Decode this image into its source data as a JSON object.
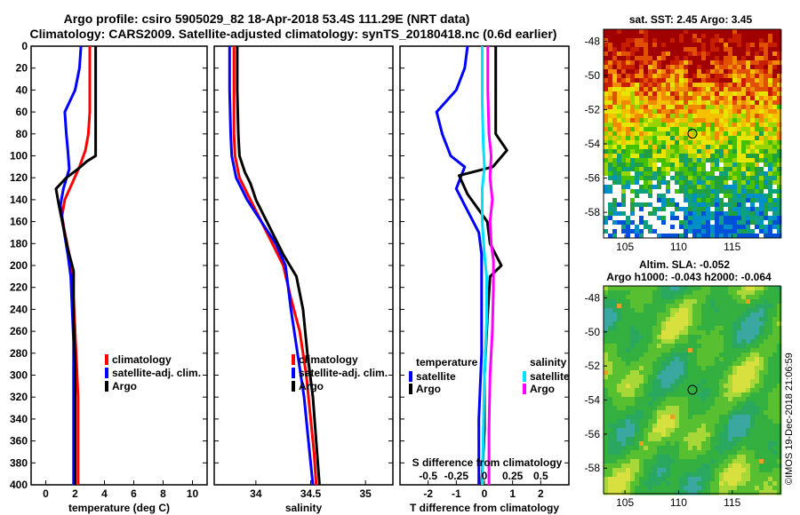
{
  "header": {
    "line1": "Argo profile: csiro 5905029_82 18-Apr-2018 53.4S 111.29E (NRT data)",
    "line2": "Climatology: CARS2009. Satellite-adjusted climatology: synTS_20180418.nc (0.6d earlier)"
  },
  "colors": {
    "climatology": "#ff0000",
    "satellite": "#0000ff",
    "argo": "#000000",
    "sat_salinity": "#00e0ff",
    "clim_salinity": "#ff00ff"
  },
  "depth_axis": {
    "ticks": [
      0,
      20,
      40,
      60,
      80,
      100,
      120,
      140,
      160,
      180,
      200,
      220,
      240,
      260,
      280,
      300,
      320,
      340,
      360,
      380,
      400
    ],
    "range": [
      0,
      400
    ]
  },
  "chart_data": [
    {
      "type": "line",
      "name": "temperature",
      "xlabel": "temperature (deg C)",
      "xlim": [
        -1,
        11
      ],
      "xticks": [
        0,
        2,
        4,
        6,
        8,
        10
      ],
      "ylim": [
        400,
        0
      ],
      "legend": [
        "climatology",
        "satellite-adj. clim.",
        "Argo"
      ],
      "series": [
        {
          "name": "climatology",
          "color": "#ff0000",
          "points": [
            [
              3.0,
              0
            ],
            [
              3.0,
              20
            ],
            [
              3.0,
              40
            ],
            [
              3.0,
              60
            ],
            [
              2.9,
              80
            ],
            [
              2.7,
              95
            ],
            [
              2.3,
              110
            ],
            [
              1.8,
              125
            ],
            [
              1.3,
              140
            ],
            [
              1.1,
              155
            ],
            [
              1.3,
              170
            ],
            [
              1.6,
              190
            ],
            [
              1.8,
              210
            ],
            [
              1.9,
              230
            ],
            [
              2.0,
              260
            ],
            [
              2.1,
              290
            ],
            [
              2.2,
              320
            ],
            [
              2.2,
              350
            ],
            [
              2.2,
              380
            ],
            [
              2.2,
              400
            ]
          ]
        },
        {
          "name": "satellite-adj. clim.",
          "color": "#0000ff",
          "points": [
            [
              2.4,
              0
            ],
            [
              2.3,
              20
            ],
            [
              2.0,
              40
            ],
            [
              1.3,
              60
            ],
            [
              1.4,
              80
            ],
            [
              1.5,
              95
            ],
            [
              1.6,
              112
            ],
            [
              1.2,
              130
            ],
            [
              1.0,
              145
            ],
            [
              1.2,
              165
            ],
            [
              1.5,
              190
            ],
            [
              1.7,
              210
            ],
            [
              1.8,
              240
            ],
            [
              1.9,
              270
            ],
            [
              1.9,
              300
            ],
            [
              1.9,
              330
            ],
            [
              1.9,
              360
            ],
            [
              1.9,
              390
            ],
            [
              1.9,
              400
            ]
          ]
        },
        {
          "name": "Argo",
          "color": "#000000",
          "points": [
            [
              3.4,
              0
            ],
            [
              3.4,
              40
            ],
            [
              3.4,
              80
            ],
            [
              3.4,
              100
            ],
            [
              2.8,
              105
            ],
            [
              2.2,
              112
            ],
            [
              1.4,
              120
            ],
            [
              0.7,
              130
            ],
            [
              0.9,
              145
            ],
            [
              1.2,
              165
            ],
            [
              1.5,
              185
            ],
            [
              1.8,
              200
            ],
            [
              1.9,
              205
            ],
            [
              1.9,
              250
            ],
            [
              2.0,
              290
            ],
            [
              2.0,
              330
            ],
            [
              2.0,
              370
            ],
            [
              2.0,
              400
            ]
          ]
        }
      ]
    },
    {
      "type": "line",
      "name": "salinity",
      "xlabel": "salinity",
      "xlim": [
        33.62,
        35.25
      ],
      "xticks": [
        34,
        34.5,
        35
      ],
      "ylim": [
        400,
        0
      ],
      "legend": [
        "climatology",
        "satellite-adj. clim.",
        "Argo"
      ],
      "series": [
        {
          "name": "climatology",
          "color": "#ff0000",
          "points": [
            [
              33.8,
              0
            ],
            [
              33.8,
              40
            ],
            [
              33.8,
              80
            ],
            [
              33.81,
              100
            ],
            [
              33.85,
              120
            ],
            [
              33.95,
              140
            ],
            [
              34.05,
              160
            ],
            [
              34.15,
              180
            ],
            [
              34.25,
              200
            ],
            [
              34.32,
              230
            ],
            [
              34.4,
              260
            ],
            [
              34.46,
              300
            ],
            [
              34.5,
              340
            ],
            [
              34.53,
              370
            ],
            [
              34.55,
              400
            ]
          ]
        },
        {
          "name": "satellite-adj. clim.",
          "color": "#0000ff",
          "points": [
            [
              33.76,
              0
            ],
            [
              33.76,
              40
            ],
            [
              33.77,
              80
            ],
            [
              33.78,
              100
            ],
            [
              33.82,
              120
            ],
            [
              33.92,
              140
            ],
            [
              34.05,
              160
            ],
            [
              34.18,
              180
            ],
            [
              34.27,
              200
            ],
            [
              34.32,
              240
            ],
            [
              34.38,
              280
            ],
            [
              34.44,
              320
            ],
            [
              34.48,
              360
            ],
            [
              34.52,
              400
            ]
          ]
        },
        {
          "name": "Argo",
          "color": "#000000",
          "points": [
            [
              33.83,
              0
            ],
            [
              33.83,
              40
            ],
            [
              33.84,
              80
            ],
            [
              33.85,
              100
            ],
            [
              33.9,
              115
            ],
            [
              33.95,
              125
            ],
            [
              34.0,
              140
            ],
            [
              34.1,
              160
            ],
            [
              34.25,
              190
            ],
            [
              34.37,
              210
            ],
            [
              34.43,
              240
            ],
            [
              34.47,
              280
            ],
            [
              34.52,
              320
            ],
            [
              34.55,
              360
            ],
            [
              34.58,
              400
            ]
          ]
        }
      ]
    },
    {
      "type": "line",
      "name": "differences",
      "xlabel": "T difference from climatology",
      "top_axis_label": "S difference from climatology",
      "xlim": [
        -3,
        3
      ],
      "xticks": [
        -2,
        -1,
        0,
        1,
        2
      ],
      "top_xticks": [
        "-0.5",
        "-0.25",
        "0",
        "0.25",
        "0.5"
      ],
      "ylim": [
        400,
        0
      ],
      "legend_temperature": {
        "title": "temperature",
        "items": [
          "satellite",
          "Argo"
        ]
      },
      "legend_salinity": {
        "title": "salinity",
        "items": [
          "satellite",
          "Argo"
        ]
      },
      "series": [
        {
          "name": "T satellite",
          "color": "#0000ff",
          "points": [
            [
              -0.6,
              0
            ],
            [
              -0.7,
              20
            ],
            [
              -1.0,
              40
            ],
            [
              -1.7,
              60
            ],
            [
              -1.5,
              80
            ],
            [
              -1.2,
              100
            ],
            [
              -0.7,
              110
            ],
            [
              -1.0,
              130
            ],
            [
              -0.6,
              150
            ],
            [
              -0.2,
              170
            ],
            [
              -0.1,
              190
            ],
            [
              -0.1,
              220
            ],
            [
              -0.1,
              280
            ],
            [
              -0.2,
              340
            ],
            [
              -0.2,
              400
            ]
          ]
        },
        {
          "name": "T Argo",
          "color": "#000000",
          "points": [
            [
              0.4,
              0
            ],
            [
              0.4,
              40
            ],
            [
              0.4,
              80
            ],
            [
              0.8,
              95
            ],
            [
              0.3,
              110
            ],
            [
              -0.9,
              118
            ],
            [
              -0.6,
              135
            ],
            [
              0.1,
              160
            ],
            [
              0.2,
              180
            ],
            [
              0.6,
              200
            ],
            [
              0.2,
              210
            ],
            [
              0.1,
              250
            ],
            [
              0.0,
              300
            ],
            [
              0.0,
              350
            ],
            [
              -0.1,
              400
            ]
          ]
        },
        {
          "name": "S satellite",
          "color": "#00e0ff",
          "points": [
            [
              -0.02,
              0
            ],
            [
              -0.02,
              50
            ],
            [
              -0.01,
              90
            ],
            [
              0.0,
              110
            ],
            [
              -0.02,
              130
            ],
            [
              -0.02,
              160
            ],
            [
              0.0,
              190
            ],
            [
              0.02,
              210
            ],
            [
              0.02,
              250
            ],
            [
              0.0,
              300
            ],
            [
              -0.02,
              400
            ]
          ]
        },
        {
          "name": "S Argo",
          "color": "#ff00ff",
          "points": [
            [
              0.03,
              0
            ],
            [
              0.03,
              40
            ],
            [
              0.04,
              80
            ],
            [
              0.06,
              100
            ],
            [
              0.05,
              120
            ],
            [
              0.07,
              140
            ],
            [
              0.05,
              160
            ],
            [
              0.06,
              180
            ],
            [
              0.08,
              195
            ],
            [
              0.08,
              220
            ],
            [
              0.07,
              260
            ],
            [
              0.05,
              300
            ],
            [
              0.04,
              350
            ],
            [
              0.04,
              400
            ]
          ]
        }
      ]
    },
    {
      "type": "heatmap",
      "name": "sst",
      "title": "sat. SST: 2.45 Argo: 3.45",
      "xticks": [
        105,
        110,
        115
      ],
      "yticks": [
        -48,
        -50,
        -52,
        -54,
        -56,
        -58
      ],
      "xlim": [
        103,
        119.5
      ],
      "ylim": [
        -59.5,
        -47.3
      ],
      "marker": {
        "lon": 111.29,
        "lat": -53.4
      }
    },
    {
      "type": "heatmap",
      "name": "sla",
      "title1": "Altim. SLA: -0.052",
      "title2": "Argo h1000: -0.043 h2000: -0.064",
      "xticks": [
        105,
        110,
        115
      ],
      "yticks": [
        -48,
        -50,
        -52,
        -54,
        -56,
        -58
      ],
      "xlim": [
        103,
        119.5
      ],
      "ylim": [
        -59.5,
        -47.3
      ],
      "marker": {
        "lon": 111.29,
        "lat": -53.4
      }
    }
  ],
  "footer_stamp": "©IMOS 19-Dec-2018 21:06:59"
}
